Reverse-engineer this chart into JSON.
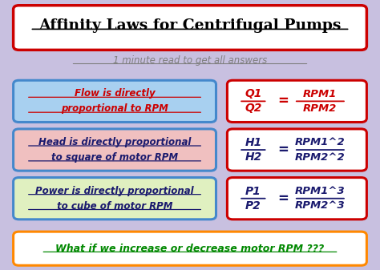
{
  "bg_color": "#c8c0e0",
  "title": "Affinity Laws for Centrifugal Pumps",
  "subtitle": "1 minute read to get all answers",
  "title_box_color": "#ffffff",
  "title_border_color": "#cc0000",
  "subtitle_color": "#808080",
  "rows": [
    {
      "left_text_line1": "Flow is directly",
      "left_text_line2": "proportional to RPM",
      "left_bg": "#a8d0f0",
      "left_border": "#4488cc",
      "left_text_color": "#cc0000",
      "right_top": "Q1",
      "right_bottom": "Q2",
      "right_rhs_top": "RPM1",
      "right_rhs_bottom": "RPM2",
      "right_text_color": "#cc0000",
      "right_bg": "#ffffff",
      "right_border": "#cc0000"
    },
    {
      "left_text_line1": "Head is directly proportional",
      "left_text_line2": "to square of motor RPM",
      "left_bg": "#f0c0c0",
      "left_border": "#4488cc",
      "left_text_color": "#1a1a6e",
      "right_top": "H1",
      "right_bottom": "H2",
      "right_rhs_top": "RPM1^2",
      "right_rhs_bottom": "RPM2^2",
      "right_text_color": "#1a1a6e",
      "right_bg": "#ffffff",
      "right_border": "#cc0000"
    },
    {
      "left_text_line1": "Power is directly proportional",
      "left_text_line2": "to cube of motor RPM",
      "left_bg": "#e0f0c0",
      "left_border": "#4488cc",
      "left_text_color": "#1a1a6e",
      "right_top": "P1",
      "right_bottom": "P2",
      "right_rhs_top": "RPM1^3",
      "right_rhs_bottom": "RPM2^3",
      "right_text_color": "#1a1a6e",
      "right_bg": "#ffffff",
      "right_border": "#cc0000"
    }
  ],
  "footer_text": "What if we increase or decrease motor RPM ???",
  "footer_color": "#008800",
  "footer_bg": "#ffffff",
  "footer_border": "#ff8800"
}
